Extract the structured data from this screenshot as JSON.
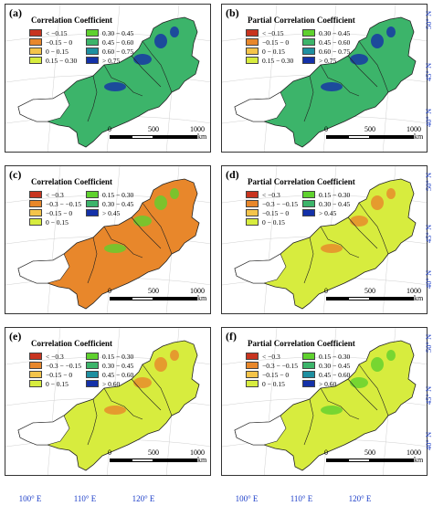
{
  "panels": [
    {
      "label": "(a)",
      "legend_title": "Correlation Coefficient",
      "legend": [
        {
          "text": "< −0.15",
          "color": "#c8341f"
        },
        {
          "text": "0.30 − 0.45",
          "color": "#5fd12e"
        },
        {
          "text": "−0.15 − 0",
          "color": "#e8872b"
        },
        {
          "text": "0.45 − 0.60",
          "color": "#3cb46a"
        },
        {
          "text": "0 − 0.15",
          "color": "#f4c44a"
        },
        {
          "text": "0.60 − 0.75",
          "color": "#1e8fa0"
        },
        {
          "text": "0.15 − 0.30",
          "color": "#d7ec3e"
        },
        {
          "text": "> 0.75",
          "color": "#1431a8"
        }
      ],
      "fill": "#3cb46a",
      "accent": "#1431a8"
    },
    {
      "label": "(b)",
      "legend_title": "Partial Correlation Coefficient",
      "legend": [
        {
          "text": "< −0.15",
          "color": "#c8341f"
        },
        {
          "text": "0.30 − 0.45",
          "color": "#5fd12e"
        },
        {
          "text": "−0.15 − 0",
          "color": "#e8872b"
        },
        {
          "text": "0.45 − 0.60",
          "color": "#3cb46a"
        },
        {
          "text": "0 − 0.15",
          "color": "#f4c44a"
        },
        {
          "text": "0.60 − 0.75",
          "color": "#1e8fa0"
        },
        {
          "text": "0.15 − 0.30",
          "color": "#d7ec3e"
        },
        {
          "text": "> 0.75",
          "color": "#1431a8"
        }
      ],
      "fill": "#3cb46a",
      "accent": "#1431a8"
    },
    {
      "label": "(c)",
      "legend_title": "Correlation Coefficient",
      "legend": [
        {
          "text": "< −0.3",
          "color": "#c8341f"
        },
        {
          "text": "0.15 − 0.30",
          "color": "#5fd12e"
        },
        {
          "text": "−0.3 − −0.15",
          "color": "#e8872b"
        },
        {
          "text": "0.30 − 0.45",
          "color": "#3cb46a"
        },
        {
          "text": "−0.15 − 0",
          "color": "#f4c44a"
        },
        {
          "text": "> 0.45",
          "color": "#1431a8"
        },
        {
          "text": "0 − 0.15",
          "color": "#d7ec3e"
        }
      ],
      "fill": "#e8872b",
      "accent": "#5fd12e"
    },
    {
      "label": "(d)",
      "legend_title": "Partial Correlation Coefficient",
      "legend": [
        {
          "text": "< −0.3",
          "color": "#c8341f"
        },
        {
          "text": "0.15 − 0.30",
          "color": "#5fd12e"
        },
        {
          "text": "−0.3 − −0.15",
          "color": "#e8872b"
        },
        {
          "text": "0.30 − 0.45",
          "color": "#3cb46a"
        },
        {
          "text": "−0.15 − 0",
          "color": "#f4c44a"
        },
        {
          "text": "> 0.45",
          "color": "#1431a8"
        },
        {
          "text": "0 − 0.15",
          "color": "#d7ec3e"
        }
      ],
      "fill": "#d7ec3e",
      "accent": "#e8872b"
    },
    {
      "label": "(e)",
      "legend_title": "Correlation Coefficient",
      "legend": [
        {
          "text": "< −0.3",
          "color": "#c8341f"
        },
        {
          "text": "0.15 − 0.30",
          "color": "#5fd12e"
        },
        {
          "text": "−0.3 − −0.15",
          "color": "#e8872b"
        },
        {
          "text": "0.30 − 0.45",
          "color": "#3cb46a"
        },
        {
          "text": "−0.15 − 0",
          "color": "#f4c44a"
        },
        {
          "text": "0.45 − 0.60",
          "color": "#1e8fa0"
        },
        {
          "text": "0 − 0.15",
          "color": "#d7ec3e"
        },
        {
          "text": "> 0.60",
          "color": "#1431a8"
        }
      ],
      "fill": "#d7ec3e",
      "accent": "#e8872b"
    },
    {
      "label": "(f)",
      "legend_title": "Partial Correlation Coefficient",
      "legend": [
        {
          "text": "< −0.3",
          "color": "#c8341f"
        },
        {
          "text": "0.15 − 0.30",
          "color": "#5fd12e"
        },
        {
          "text": "−0.3 − −0.15",
          "color": "#e8872b"
        },
        {
          "text": "0.30 − 0.45",
          "color": "#3cb46a"
        },
        {
          "text": "−0.15 − 0",
          "color": "#f4c44a"
        },
        {
          "text": "0.45 − 0.60",
          "color": "#1e8fa0"
        },
        {
          "text": "0 − 0.15",
          "color": "#d7ec3e"
        },
        {
          "text": "> 0.60",
          "color": "#1431a8"
        }
      ],
      "fill": "#d7ec3e",
      "accent": "#5fd12e"
    }
  ],
  "latitudes": [
    "50° N",
    "45° N",
    "40° N"
  ],
  "longitudes": [
    "100° E",
    "110° E",
    "120° E"
  ],
  "scale": {
    "ticks": [
      "0",
      "500",
      "1000"
    ],
    "unit": "km"
  },
  "colors": {
    "graticule_label": "#1a3cc8",
    "boundary": "#222222"
  }
}
